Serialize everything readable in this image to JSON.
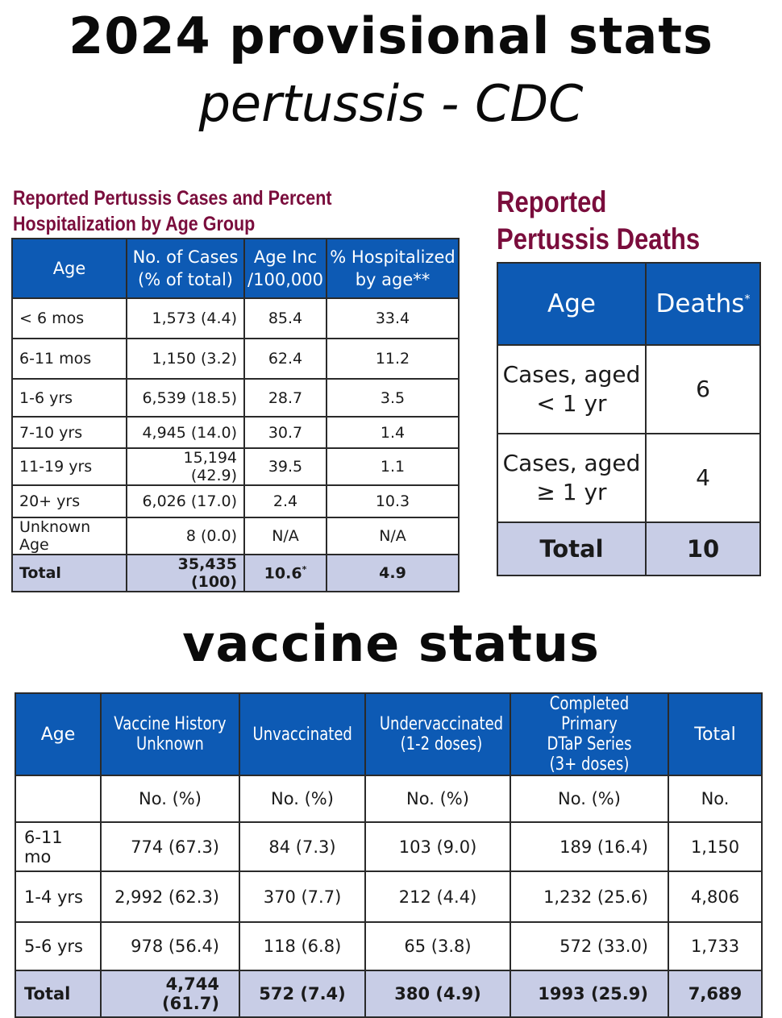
{
  "titles": {
    "main": "2024 provisional stats",
    "sub": "pertussis - CDC",
    "vaccine": "vaccine status"
  },
  "cases_table": {
    "caption_line1": "Reported Pertussis Cases and Percent",
    "caption_line2": "Hospitalization by Age Group",
    "headers": {
      "age": "Age",
      "cases_1": "No. of Cases",
      "cases_2": "(% of total)",
      "inc_1": "Age Inc",
      "inc_2": "/100,000",
      "hosp_1": "% Hospitalized",
      "hosp_2": "by age**"
    },
    "rows": [
      {
        "age": "< 6 mos",
        "cases": "1,573 (4.4)",
        "inc": "85.4",
        "hosp": "33.4"
      },
      {
        "age": "6-11 mos",
        "cases": "1,150 (3.2)",
        "inc": "62.4",
        "hosp": "11.2"
      },
      {
        "age": "1-6 yrs",
        "cases": "6,539 (18.5)",
        "inc": "28.7",
        "hosp": "3.5"
      },
      {
        "age": "7-10 yrs",
        "cases": "4,945 (14.0)",
        "inc": "30.7",
        "hosp": "1.4"
      },
      {
        "age": "11-19 yrs",
        "cases": "15,194 (42.9)",
        "inc": "39.5",
        "hosp": "1.1"
      },
      {
        "age": "20+ yrs",
        "cases": "6,026 (17.0)",
        "inc": "2.4",
        "hosp": "10.3"
      },
      {
        "age": "Unknown Age",
        "cases": "8 (0.0)",
        "inc": "N/A",
        "hosp": "N/A"
      }
    ],
    "total": {
      "age": "Total",
      "cases": "35,435 (100)",
      "inc": "10.6",
      "inc_mark": "*",
      "hosp": "4.9"
    }
  },
  "deaths_table": {
    "caption_line1": "Reported",
    "caption_line2": "Pertussis Deaths",
    "headers": {
      "age": "Age",
      "deaths": "Deaths",
      "deaths_mark": "*"
    },
    "rows": [
      {
        "age_1": "Cases, aged",
        "age_2": "< 1 yr",
        "deaths": "6"
      },
      {
        "age_1": "Cases, aged",
        "age_2": "≥ 1 yr",
        "deaths": "4"
      }
    ],
    "total": {
      "age": "Total",
      "deaths": "10"
    }
  },
  "vaccine_table": {
    "headers": {
      "age": "Age",
      "unknown_1": "Vaccine History",
      "unknown_2": "Unknown",
      "unvax": "Unvaccinated",
      "under_1": "Undervaccinated",
      "under_2": "(1-2 doses)",
      "complete_1": "Completed Primary",
      "complete_2": "DTaP Series",
      "complete_3": "(3+ doses)",
      "total": "Total"
    },
    "subheaders": {
      "age": "",
      "unknown": "No. (%)",
      "unvax": "No. (%)",
      "under": "No. (%)",
      "complete": "No. (%)",
      "total": "No."
    },
    "rows": [
      {
        "age": "6-11 mo",
        "unknown": "774 (67.3)",
        "unvax": "84 (7.3)",
        "under": "103 (9.0)",
        "complete": "189 (16.4)",
        "total": "1,150"
      },
      {
        "age": "1-4 yrs",
        "unknown": "2,992 (62.3)",
        "unvax": "370 (7.7)",
        "under": "212 (4.4)",
        "complete": "1,232 (25.6)",
        "total": "4,806"
      },
      {
        "age": "5-6 yrs",
        "unknown": "978 (56.4)",
        "unvax": "118 (6.8)",
        "under": "65 (3.8)",
        "complete": "572 (33.0)",
        "total": "1,733"
      }
    ],
    "total": {
      "age": "Total",
      "unknown": "4,744 (61.7)",
      "unvax": "572 (7.4)",
      "under": "380 (4.9)",
      "complete": "1993 (25.9)",
      "total": "7,689"
    }
  },
  "colors": {
    "header_blue": "#0d5ab4",
    "total_row": "#c8cde6",
    "caption_maroon": "#7a0d3c"
  }
}
